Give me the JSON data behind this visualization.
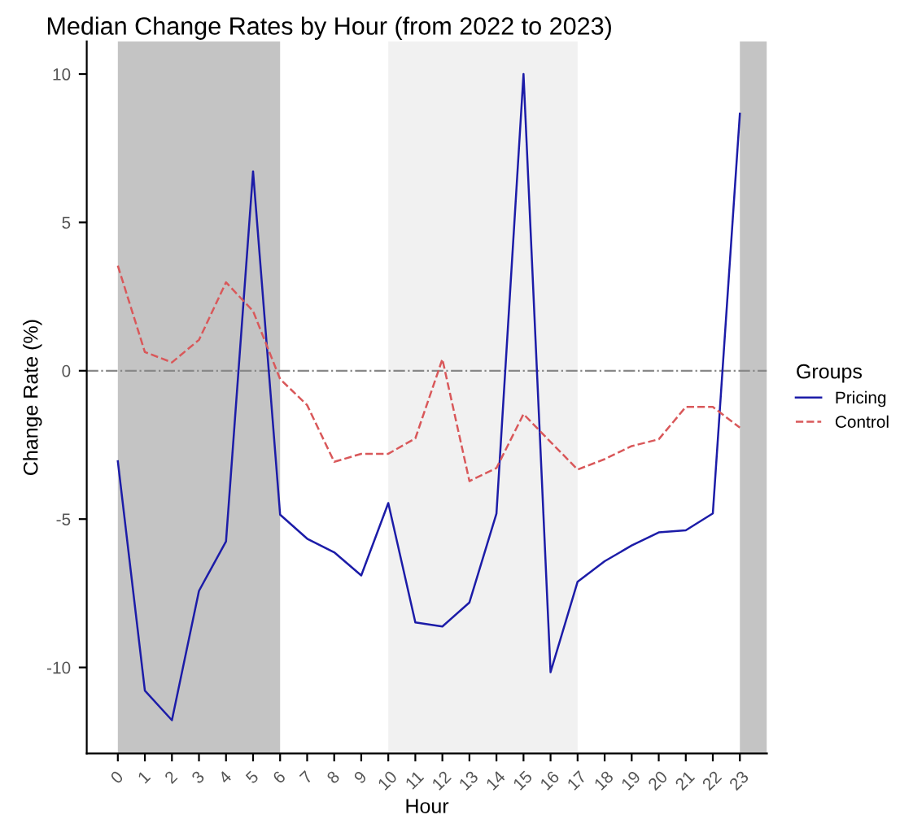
{
  "chart_data": {
    "type": "line",
    "title": "Median Change Rates by Hour (from 2022 to 2023)",
    "xlabel": "Hour",
    "ylabel": "Change Rate (%)",
    "legend_title": "Groups",
    "legend": "right",
    "x": [
      0,
      1,
      2,
      3,
      4,
      5,
      6,
      7,
      8,
      9,
      10,
      11,
      12,
      13,
      14,
      15,
      16,
      17,
      18,
      19,
      20,
      21,
      22,
      23
    ],
    "xlim": [
      -1.15,
      24
    ],
    "xticks": [
      0,
      1,
      2,
      3,
      4,
      5,
      6,
      7,
      8,
      9,
      10,
      11,
      12,
      13,
      14,
      15,
      16,
      17,
      18,
      19,
      20,
      21,
      22,
      23
    ],
    "ylim": [
      -12.9,
      11.1
    ],
    "yticks": [
      -10,
      -5,
      0,
      5,
      10
    ],
    "grid": false,
    "series": [
      {
        "name": "Pricing",
        "color": "#1c1ca8",
        "line_style": "solid",
        "values": [
          -3.05,
          -10.78,
          -11.78,
          -7.42,
          -5.75,
          6.72,
          -4.85,
          -5.66,
          -6.12,
          -6.9,
          -4.46,
          -8.48,
          -8.62,
          -7.81,
          -4.81,
          10.0,
          -10.16,
          -7.11,
          -6.42,
          -5.89,
          -5.45,
          -5.38,
          -4.81,
          8.66
        ]
      },
      {
        "name": "Control",
        "color": "#d9585a",
        "line_style": "dashed",
        "values": [
          3.54,
          0.63,
          0.28,
          1.04,
          2.98,
          2.01,
          -0.28,
          -1.16,
          -3.07,
          -2.8,
          -2.8,
          -2.28,
          0.39,
          -3.72,
          -3.28,
          -1.46,
          -2.4,
          -3.33,
          -2.98,
          -2.54,
          -2.31,
          -1.22,
          -1.22,
          -1.92
        ]
      }
    ],
    "ref_lines": [
      {
        "axis": "y",
        "value": 0,
        "label": null,
        "color": "#888888",
        "line_style": "dashdot"
      }
    ],
    "bands": [
      {
        "axis": "x",
        "from": 0,
        "to": 6,
        "label": null,
        "color": "#c4c4c4"
      },
      {
        "axis": "x",
        "from": 10,
        "to": 17,
        "label": null,
        "color": "#f1f1f1"
      },
      {
        "axis": "x",
        "from": 23,
        "to": 24,
        "label": null,
        "color": "#c4c4c4"
      }
    ]
  }
}
